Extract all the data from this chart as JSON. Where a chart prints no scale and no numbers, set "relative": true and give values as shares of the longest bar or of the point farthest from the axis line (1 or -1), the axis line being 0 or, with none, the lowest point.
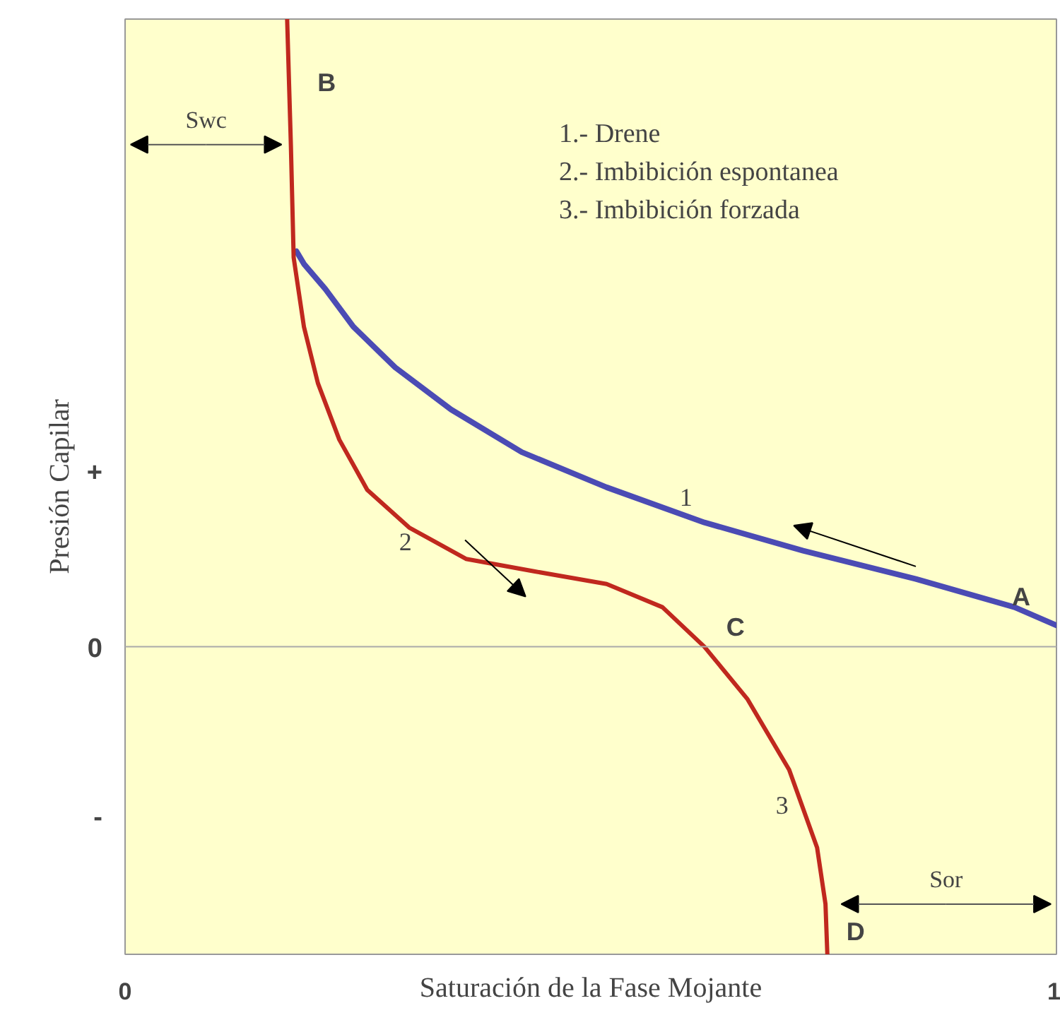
{
  "chart_data": {
    "type": "line",
    "relative": true,
    "xlabel": "Saturación de la Fase Mojante",
    "ylabel": "Presión Capilar",
    "xlim": [
      0,
      1
    ],
    "xticks": [
      0,
      1
    ],
    "series": [
      {
        "color": "#4b4bb4",
        "x": [
          1.0,
          0.955,
          0.849,
          0.728,
          0.622,
          0.517,
          0.426,
          0.35,
          0.29,
          0.245,
          0.215,
          0.192,
          0.184
        ],
        "values": [
          0.034,
          0.063,
          0.108,
          0.153,
          0.198,
          0.254,
          0.31,
          0.378,
          0.445,
          0.51,
          0.57,
          0.61,
          0.63
        ]
      },
      {
        "color": "#c0281e",
        "x": [
          0.174,
          0.178,
          0.181,
          0.192,
          0.207,
          0.23,
          0.26,
          0.305,
          0.366,
          0.44,
          0.517,
          0.577,
          0.622,
          0.668,
          0.713,
          0.743,
          0.752,
          0.754
        ],
        "values": [
          1.0,
          0.8,
          0.62,
          0.51,
          0.42,
          0.33,
          0.25,
          0.19,
          0.14,
          0.12,
          0.1,
          0.063,
          0.0,
          -0.083,
          -0.196,
          -0.32,
          -0.41,
          -0.49
        ]
      }
    ],
    "annotations": [
      "1.- Drene",
      "2.- Imbibición espontanea",
      "3.- Imbibición forzada",
      "+",
      "0",
      "-",
      "B",
      "A",
      "C",
      "D",
      "1",
      "2",
      "3",
      "Swc",
      "Sor"
    ]
  }
}
